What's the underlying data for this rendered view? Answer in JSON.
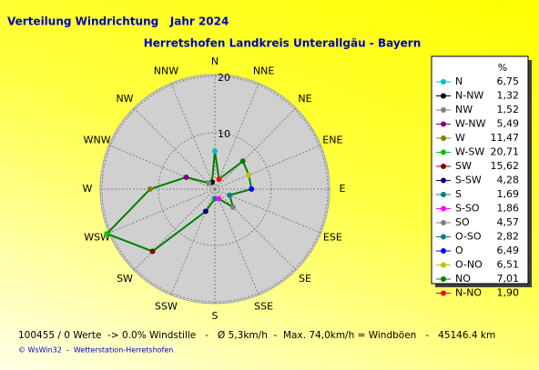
{
  "chart_data": {
    "type": "radar",
    "title": "Verteilung Windrichtung   Jahr 2024",
    "subtitle": "Herretshofen Landkreis Unterallgäu - Bayern",
    "categories": [
      "N",
      "NNE",
      "NE",
      "ENE",
      "E",
      "ESE",
      "SE",
      "SSE",
      "S",
      "SSW",
      "SW",
      "WSW",
      "W",
      "WNW",
      "NW",
      "NNW"
    ],
    "legend_title": "%",
    "legend_names": [
      "N",
      "N-NW",
      "NW",
      "W-NW",
      "W",
      "W-SW",
      "SW",
      "S-SW",
      "S",
      "S-SO",
      "SO",
      "O-SO",
      "O",
      "O-NO",
      "NO",
      "N-NO"
    ],
    "values": [
      6.75,
      1.32,
      1.52,
      5.49,
      11.47,
      20.71,
      15.62,
      4.28,
      1.69,
      1.86,
      4.57,
      2.82,
      6.49,
      6.51,
      7.01,
      1.9
    ],
    "value_labels": [
      "6,75",
      "1,32",
      "1,52",
      "5,49",
      "11,47",
      "20,71",
      "15,62",
      "4,28",
      "1,69",
      "1,86",
      "4,57",
      "2,82",
      "6,49",
      "6,51",
      "7,01",
      "1,90"
    ],
    "point_colors": [
      "#00c0c0",
      "#000000",
      "#808080",
      "#800080",
      "#808000",
      "#00c000",
      "#800000",
      "#000080",
      "#008080",
      "#ff00ff",
      "#808080",
      "#008080",
      "#0000ff",
      "#c0c000",
      "#008000",
      "#ff0000"
    ],
    "line_color": "#008000",
    "ylim": [
      0,
      20
    ],
    "yticks": [
      10,
      20
    ],
    "footer": "100455 / 0 Werte  -> 0.0% Windstille   -   Ø 5,3km/h  -  Max. 74,0km/h = Windböen   -   45146.4 km",
    "credit": "© WsWin32  -  Wetterstation-Herretshofen"
  }
}
